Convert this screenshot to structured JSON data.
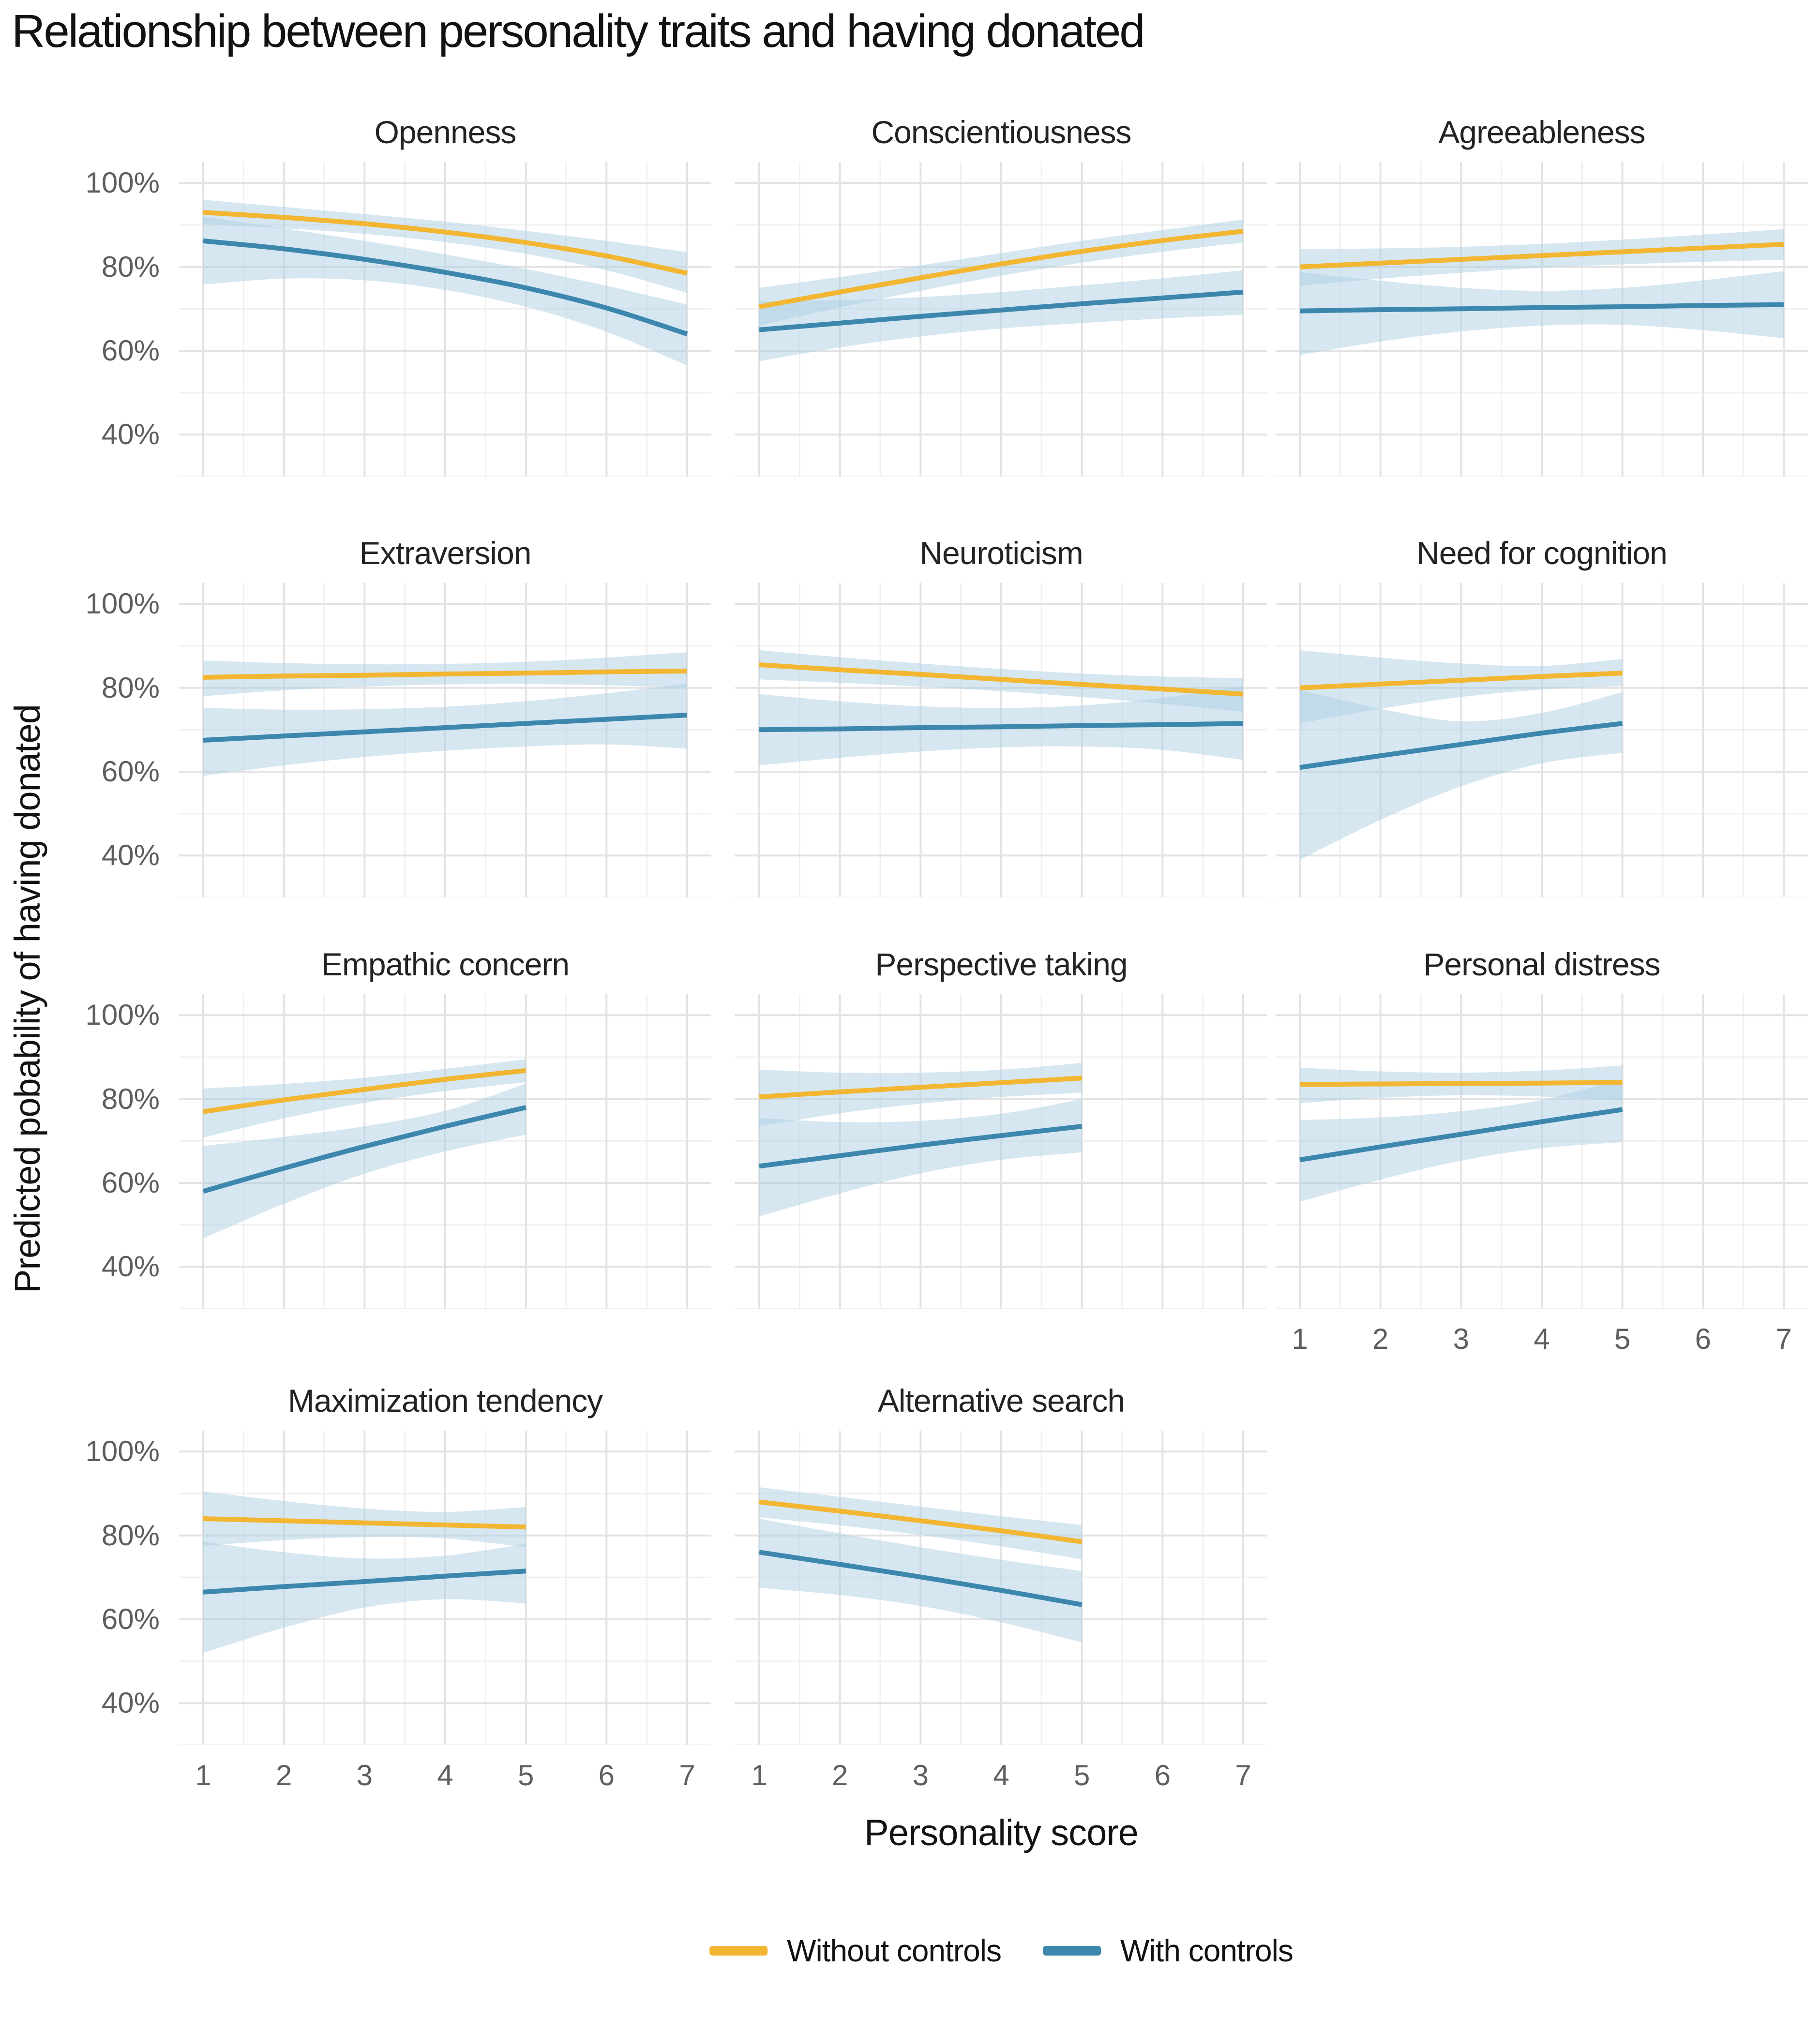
{
  "title": "Relationship between personality traits and having donated",
  "colors": {
    "without_controls": "#F2B632",
    "with_controls": "#3D87AE",
    "ci_band": "#AECFE3",
    "grid_major": "#E3E3E3",
    "grid_minor": "#F0F0F0",
    "tick_text": "#5E5E5E",
    "title_text": "#121212"
  },
  "legend": {
    "items": [
      {
        "label": "Without controls",
        "color": "#F2B632"
      },
      {
        "label": "With controls",
        "color": "#3D87AE"
      }
    ]
  },
  "chart_data": {
    "type": "line",
    "title": "Relationship between personality traits and having donated",
    "xlabel": "Personality score",
    "ylabel": "Predicted pobability of having donated",
    "x_ticks": [
      1,
      2,
      3,
      4,
      5,
      6,
      7
    ],
    "y_tick_labels": [
      "100%",
      "80%",
      "60%",
      "40%"
    ],
    "y_tick_values": [
      100,
      80,
      60,
      40
    ],
    "x_range": [
      0.7,
      7.3
    ],
    "y_range": [
      30,
      105
    ],
    "grid": true,
    "legend_position": "bottom",
    "units": "percent",
    "facets": [
      {
        "facet": "Openness",
        "x": [
          1,
          2,
          3,
          4,
          5,
          6,
          7
        ],
        "series": [
          {
            "name": "Without controls",
            "key": "without_controls",
            "y": [
              93,
              91.8,
              90.3,
              88.3,
              85.8,
              82.6,
              78.5
            ],
            "ci_low": [
              90.2,
              89.2,
              87.9,
              85.9,
              83.1,
              79.2,
              73.8
            ],
            "ci_high": [
              96,
              94.3,
              92.6,
              90.8,
              88.6,
              86.2,
              83.5
            ]
          },
          {
            "name": "With controls",
            "key": "with_controls",
            "y": [
              86.2,
              84.3,
              81.8,
              78.7,
              75,
              70.2,
              64
            ],
            "ci_low": [
              75.8,
              77.2,
              76.8,
              74.5,
              70.5,
              64.5,
              56.5
            ],
            "ci_high": [
              92,
              89.2,
              86.2,
              83,
              79.5,
              75.5,
              71
            ]
          }
        ]
      },
      {
        "facet": "Conscientiousness",
        "x": [
          1,
          2,
          3,
          4,
          5,
          6,
          7
        ],
        "series": [
          {
            "name": "Without controls",
            "key": "without_controls",
            "y": [
              70.5,
              74,
              77.4,
              80.7,
              83.7,
              86.3,
              88.5
            ],
            "ci_low": [
              66,
              70.3,
              74.3,
              77.9,
              81,
              83.6,
              85.8
            ],
            "ci_high": [
              75,
              77.6,
              80.4,
              83.3,
              86.2,
              88.8,
              91.3
            ]
          },
          {
            "name": "With controls",
            "key": "with_controls",
            "y": [
              65,
              66.6,
              68.2,
              69.7,
              71.2,
              72.6,
              74
            ],
            "ci_low": [
              57.5,
              60.8,
              63.4,
              65.3,
              66.6,
              67.7,
              68.6
            ],
            "ci_high": [
              71.8,
              72.1,
              72.8,
              74,
              75.6,
              77.3,
              79.2
            ]
          }
        ]
      },
      {
        "facet": "Agreeableness",
        "x": [
          1,
          2,
          3,
          4,
          5,
          6,
          7
        ],
        "series": [
          {
            "name": "Without controls",
            "key": "without_controls",
            "y": [
              80,
              80.9,
              81.8,
              82.7,
              83.6,
              84.5,
              85.4
            ],
            "ci_low": [
              75.5,
              77.2,
              78.6,
              79.8,
              80.6,
              81.2,
              81.7
            ],
            "ci_high": [
              84.3,
              84.4,
              84.8,
              85.5,
              86.5,
              87.7,
              89
            ]
          },
          {
            "name": "With controls",
            "key": "with_controls",
            "y": [
              69.5,
              69.8,
              70,
              70.3,
              70.5,
              70.8,
              71
            ],
            "ci_low": [
              59,
              62.2,
              64.6,
              66,
              66.2,
              64.9,
              63
            ],
            "ci_high": [
              78.8,
              76.7,
              75,
              74.3,
              75,
              76.8,
              79
            ]
          }
        ]
      },
      {
        "facet": "Extraversion",
        "x": [
          1,
          2,
          3,
          4,
          5,
          6,
          7
        ],
        "series": [
          {
            "name": "Without controls",
            "key": "without_controls",
            "y": [
              82.5,
              82.8,
              83,
              83.3,
              83.5,
              83.8,
              84
            ],
            "ci_low": [
              78,
              79.4,
              80.3,
              80.8,
              80.9,
              80.6,
              80
            ],
            "ci_high": [
              86.5,
              85.9,
              85.6,
              85.7,
              86.2,
              87.2,
              88.5
            ]
          },
          {
            "name": "With controls",
            "key": "with_controls",
            "y": [
              67.5,
              68.5,
              69.5,
              70.5,
              71.5,
              72.5,
              73.5
            ],
            "ci_low": [
              59,
              61.5,
              63.5,
              65,
              66,
              66.5,
              65.5
            ],
            "ci_high": [
              75.2,
              74.8,
              74.9,
              75.5,
              76.8,
              78.7,
              81
            ]
          }
        ]
      },
      {
        "facet": "Neuroticism",
        "x": [
          1,
          2,
          3,
          4,
          5,
          6,
          7
        ],
        "series": [
          {
            "name": "Without controls",
            "key": "without_controls",
            "y": [
              85.5,
              84.3,
              83.2,
              82,
              80.8,
              79.7,
              78.5
            ],
            "ci_low": [
              82,
              81.2,
              80.3,
              79.2,
              77.8,
              76.2,
              74.3
            ],
            "ci_high": [
              89,
              87.3,
              85.8,
              84.5,
              83.4,
              82.7,
              82.3
            ]
          },
          {
            "name": "With controls",
            "key": "with_controls",
            "y": [
              70,
              70.2,
              70.5,
              70.7,
              71,
              71.2,
              71.5
            ],
            "ci_low": [
              61.5,
              63.3,
              64.8,
              65.8,
              66,
              65.2,
              62.8
            ],
            "ci_high": [
              78.5,
              76.8,
              75.6,
              75.2,
              75.8,
              77.6,
              80.5
            ]
          }
        ]
      },
      {
        "facet": "Need for cognition",
        "x": [
          1,
          2,
          3,
          4,
          5
        ],
        "series": [
          {
            "name": "Without controls",
            "key": "without_controls",
            "y": [
              80,
              80.9,
              81.8,
              82.7,
              83.5
            ],
            "ci_low": [
              71.5,
              75,
              77.8,
              79.6,
              80.4
            ],
            "ci_high": [
              89,
              87.2,
              85.8,
              85.2,
              86.9
            ]
          },
          {
            "name": "With controls",
            "key": "with_controls",
            "y": [
              61,
              63.8,
              66.5,
              69.2,
              71.5
            ],
            "ci_low": [
              39,
              48.5,
              56.5,
              62,
              64.5
            ],
            "ci_high": [
              79.5,
              75,
              72,
              74,
              79
            ]
          }
        ]
      },
      {
        "facet": "Empathic concern",
        "x": [
          1,
          2,
          3,
          4,
          5
        ],
        "series": [
          {
            "name": "Without controls",
            "key": "without_controls",
            "y": [
              77,
              79.8,
              82.3,
              84.7,
              86.8
            ],
            "ci_low": [
              70.8,
              75.4,
              79.1,
              81.9,
              84
            ],
            "ci_high": [
              82.5,
              83.6,
              85.1,
              87.2,
              89.5
            ]
          },
          {
            "name": "With controls",
            "key": "with_controls",
            "y": [
              58,
              63.5,
              68.7,
              73.5,
              78
            ],
            "ci_low": [
              46.8,
              55,
              62.2,
              67.5,
              71.5
            ],
            "ci_high": [
              68.8,
              71,
              73.5,
              77.2,
              83.7
            ]
          }
        ]
      },
      {
        "facet": "Perspective taking",
        "x": [
          1,
          2,
          3,
          4,
          5
        ],
        "series": [
          {
            "name": "Without controls",
            "key": "without_controls",
            "y": [
              80.5,
              81.7,
              82.8,
              83.9,
              85
            ],
            "ci_low": [
              73.5,
              76.6,
              78.9,
              80.5,
              81.5
            ],
            "ci_high": [
              87,
              86.3,
              86.3,
              87,
              88.6
            ]
          },
          {
            "name": "With controls",
            "key": "with_controls",
            "y": [
              64,
              66.5,
              69,
              71.3,
              73.5
            ],
            "ci_low": [
              52,
              57.5,
              62.3,
              65.5,
              67.3
            ],
            "ci_high": [
              75.5,
              74.5,
              74.8,
              76.5,
              80
            ]
          }
        ]
      },
      {
        "facet": "Personal distress",
        "x": [
          1,
          2,
          3,
          4,
          5
        ],
        "series": [
          {
            "name": "Without controls",
            "key": "without_controls",
            "y": [
              83.5,
              83.6,
              83.7,
              83.8,
              84
            ],
            "ci_low": [
              79,
              80.3,
              80.9,
              80.6,
              79.8
            ],
            "ci_high": [
              87.5,
              86.6,
              86.3,
              86.8,
              88
            ]
          },
          {
            "name": "With controls",
            "key": "with_controls",
            "y": [
              65.5,
              68.6,
              71.6,
              74.6,
              77.5
            ],
            "ci_low": [
              55.5,
              60.8,
              65.3,
              68.3,
              69.7
            ],
            "ci_high": [
              75,
              75.6,
              77.1,
              79.8,
              84.8
            ]
          }
        ]
      },
      {
        "facet": "Maximization tendency",
        "x": [
          1,
          2,
          3,
          4,
          5
        ],
        "series": [
          {
            "name": "Without controls",
            "key": "without_controls",
            "y": [
              84,
              83.5,
              83,
              82.5,
              82
            ],
            "ci_low": [
              77.5,
              78.9,
              79.6,
              79.3,
              77.2
            ],
            "ci_high": [
              90.5,
              88.2,
              86.4,
              85.6,
              86.8
            ]
          },
          {
            "name": "With controls",
            "key": "with_controls",
            "y": [
              66.5,
              67.8,
              69,
              70.3,
              71.5
            ],
            "ci_low": [
              52,
              58,
              62.8,
              64.8,
              63.8
            ],
            "ci_high": [
              78.5,
              76,
              74.5,
              75.2,
              78
            ]
          }
        ]
      },
      {
        "facet": "Alternative search",
        "x": [
          1,
          2,
          3,
          4,
          5
        ],
        "series": [
          {
            "name": "Without controls",
            "key": "without_controls",
            "y": [
              88,
              85.8,
              83.5,
              81.1,
              78.5
            ],
            "ci_low": [
              84.3,
              82.4,
              80.1,
              77.4,
              74.3
            ],
            "ci_high": [
              91.5,
              89.2,
              86.9,
              84.6,
              82.5
            ]
          },
          {
            "name": "With controls",
            "key": "with_controls",
            "y": [
              76,
              73.1,
              70.1,
              66.9,
              63.5
            ],
            "ci_low": [
              67.5,
              65.8,
              63.2,
              59.3,
              54.5
            ],
            "ci_high": [
              84,
              80.5,
              77.2,
              74.2,
              71.5
            ]
          }
        ]
      }
    ]
  }
}
